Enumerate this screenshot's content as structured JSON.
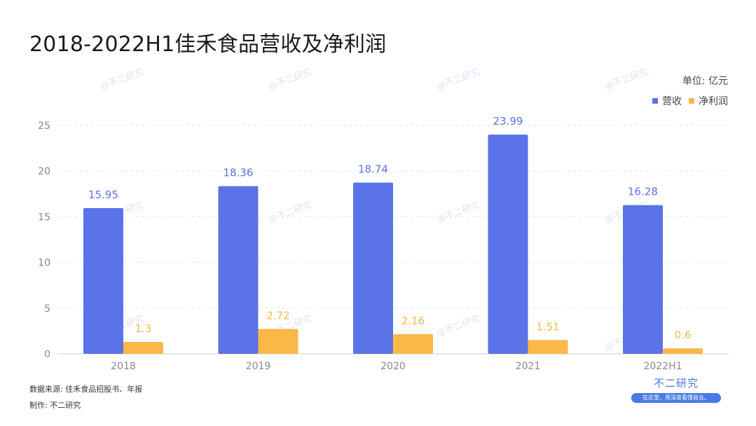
{
  "title": "2018-2022H1佳禾食品营收及净利润",
  "unit": "单位: 亿元",
  "footer": {
    "source": "数据来源: 佳禾食品招股书、年报",
    "producer": "制作: 不二研究"
  },
  "brand": {
    "name": "不二研究",
    "slogan": "在这里，用深度看懂商业。",
    "watermark": "@不二研究"
  },
  "colors": {
    "revenue": "#5b73e8",
    "profit": "#fbb748",
    "grid": "#e6e6e6",
    "tick": "#888888"
  },
  "chart_data": {
    "type": "bar",
    "categories": [
      "2018",
      "2019",
      "2020",
      "2021",
      "2022H1"
    ],
    "series": [
      {
        "name": "营收",
        "values": [
          15.95,
          18.36,
          18.74,
          23.99,
          16.28
        ],
        "color": "#5b73e8"
      },
      {
        "name": "净利润",
        "values": [
          1.3,
          2.72,
          2.16,
          1.51,
          0.6
        ],
        "color": "#fbb748"
      }
    ],
    "data_labels": [
      [
        "15.95",
        "18.36",
        "18.74",
        "23.99",
        "16.28"
      ],
      [
        "1.3",
        "2.72",
        "2.16",
        "1.51",
        "0.6"
      ]
    ],
    "yticks": [
      "0",
      "5",
      "10",
      "15",
      "20",
      "25"
    ],
    "ylim": [
      0,
      25
    ],
    "grid": true,
    "legend": "top-right"
  }
}
